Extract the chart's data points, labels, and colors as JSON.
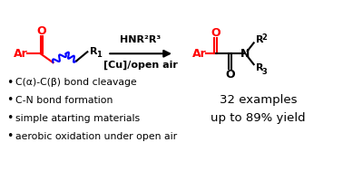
{
  "bg_color": "#ffffff",
  "red_color": "#ff0000",
  "blue_color": "#0000ff",
  "black_color": "#000000",
  "bullet_points": [
    "C(α)-C(β) bond cleavage",
    "C-N bond formation",
    "simple atarting materials",
    "aerobic oxidation under open air"
  ],
  "arrow_above": "HNR²R³",
  "arrow_below": "[Cu]/open air",
  "result_line1": "32 examples",
  "result_line2": "up to 89% yield",
  "figsize": [
    3.78,
    1.89
  ],
  "dpi": 100
}
